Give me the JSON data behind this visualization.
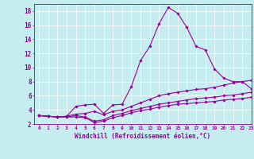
{
  "xlabel": "Windchill (Refroidissement éolien,°C)",
  "background_color": "#c5ecee",
  "line_color": "#990099",
  "xlim": [
    -0.5,
    23
  ],
  "ylim": [
    2,
    19
  ],
  "yticks": [
    2,
    4,
    6,
    8,
    10,
    12,
    14,
    16,
    18
  ],
  "xticks": [
    0,
    1,
    2,
    3,
    4,
    5,
    6,
    7,
    8,
    9,
    10,
    11,
    12,
    13,
    14,
    15,
    16,
    17,
    18,
    19,
    20,
    21,
    22,
    23
  ],
  "curves": [
    {
      "x": [
        0,
        1,
        2,
        3,
        4,
        5,
        6,
        7,
        8,
        9,
        10,
        11,
        12,
        13,
        14,
        15,
        16,
        17,
        18,
        19,
        20,
        21,
        22,
        23
      ],
      "y": [
        3.2,
        3.1,
        3.0,
        3.1,
        4.5,
        4.7,
        4.8,
        3.5,
        4.7,
        4.8,
        7.3,
        11.0,
        13.0,
        16.2,
        18.5,
        17.7,
        15.7,
        13.0,
        12.5,
        9.8,
        8.5,
        8.0,
        8.0,
        7.0
      ]
    },
    {
      "x": [
        0,
        1,
        2,
        3,
        4,
        5,
        6,
        7,
        8,
        9,
        10,
        11,
        12,
        13,
        14,
        15,
        16,
        17,
        18,
        19,
        20,
        21,
        22,
        23
      ],
      "y": [
        3.2,
        3.1,
        3.0,
        3.1,
        3.4,
        3.5,
        3.8,
        3.3,
        3.8,
        4.0,
        4.5,
        5.0,
        5.5,
        6.0,
        6.3,
        6.5,
        6.7,
        6.9,
        7.0,
        7.2,
        7.5,
        7.8,
        8.0,
        8.2
      ]
    },
    {
      "x": [
        0,
        1,
        2,
        3,
        4,
        5,
        6,
        7,
        8,
        9,
        10,
        11,
        12,
        13,
        14,
        15,
        16,
        17,
        18,
        19,
        20,
        21,
        22,
        23
      ],
      "y": [
        3.2,
        3.1,
        3.0,
        3.0,
        3.2,
        3.0,
        2.4,
        2.6,
        3.2,
        3.5,
        3.9,
        4.2,
        4.5,
        4.8,
        5.0,
        5.2,
        5.4,
        5.6,
        5.7,
        5.8,
        6.0,
        6.1,
        6.3,
        6.5
      ]
    },
    {
      "x": [
        0,
        1,
        2,
        3,
        4,
        5,
        6,
        7,
        8,
        9,
        10,
        11,
        12,
        13,
        14,
        15,
        16,
        17,
        18,
        19,
        20,
        21,
        22,
        23
      ],
      "y": [
        3.2,
        3.1,
        3.0,
        3.0,
        3.0,
        2.9,
        2.2,
        2.4,
        2.9,
        3.2,
        3.6,
        3.9,
        4.1,
        4.4,
        4.6,
        4.8,
        4.9,
        5.0,
        5.1,
        5.2,
        5.4,
        5.5,
        5.6,
        5.8
      ]
    }
  ],
  "grid_color": "#ffffff",
  "spine_color": "#990099",
  "tick_color": "#990099",
  "label_color": "#990099"
}
